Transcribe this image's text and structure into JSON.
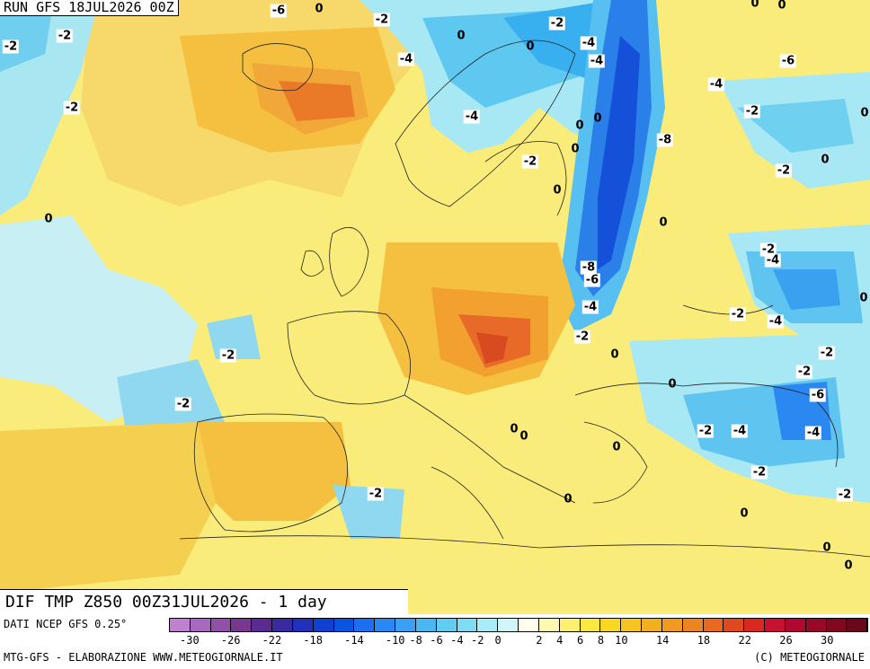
{
  "header": {
    "run_title": "RUN GFS 18JUL2026 00Z"
  },
  "map": {
    "field_title": "DIF TMP Z850 00Z31JUL2026 - 1 day",
    "labels": [
      "-6",
      "0",
      "-2",
      "-2",
      "-2",
      "0",
      "0",
      "-2",
      "-4",
      "-4",
      "-4",
      "-4",
      "-6",
      "0",
      "0",
      "-4",
      "-8",
      "-2",
      "0",
      "-2",
      "0",
      "-2",
      "0",
      "0",
      "0",
      "-2",
      "-4",
      "0",
      "-8",
      "-6",
      "-2",
      "-4",
      "-4",
      "-2",
      "-2",
      "-2",
      "-2",
      "-2",
      "0",
      "-6",
      "0",
      "-2",
      "-4",
      "-4",
      "-2",
      "0",
      "0",
      "0",
      "0",
      "-2",
      "0",
      "-2",
      "0",
      "0",
      "0",
      "0",
      "-2",
      "0"
    ]
  },
  "footer": {
    "data_source": "DATI NCEP GFS 0.25°",
    "credits": "MTG-GFS - ELABORAZIONE WWW.METEOGIORNALE.IT",
    "copyright": "(C) METEOGIORNALE"
  },
  "colorbar": {
    "colors": [
      "#c080d0",
      "#a868c0",
      "#9050a8",
      "#783890",
      "#5a2a90",
      "#3a2aa0",
      "#2030b8",
      "#1040d0",
      "#0a55e0",
      "#1a70f0",
      "#2a88f5",
      "#3aa0f5",
      "#4ab8f0",
      "#60ccf0",
      "#80dcf5",
      "#a8ecf8",
      "#d0f6fa",
      "#fffff0",
      "#fff8b0",
      "#fff070",
      "#fde840",
      "#f8d820",
      "#f5c420",
      "#f2b020",
      "#f09a20",
      "#ec8420",
      "#e86820",
      "#e04820",
      "#d82820",
      "#c81030",
      "#b00830",
      "#980828",
      "#800820",
      "#680818"
    ],
    "ticks": [
      "-30",
      "-26",
      "-22",
      "-18",
      "-14",
      "-10",
      "-8",
      "-6",
      "-4",
      "-2",
      "0",
      "2",
      "4",
      "6",
      "8",
      "10",
      "14",
      "18",
      "22",
      "26",
      "30"
    ]
  }
}
